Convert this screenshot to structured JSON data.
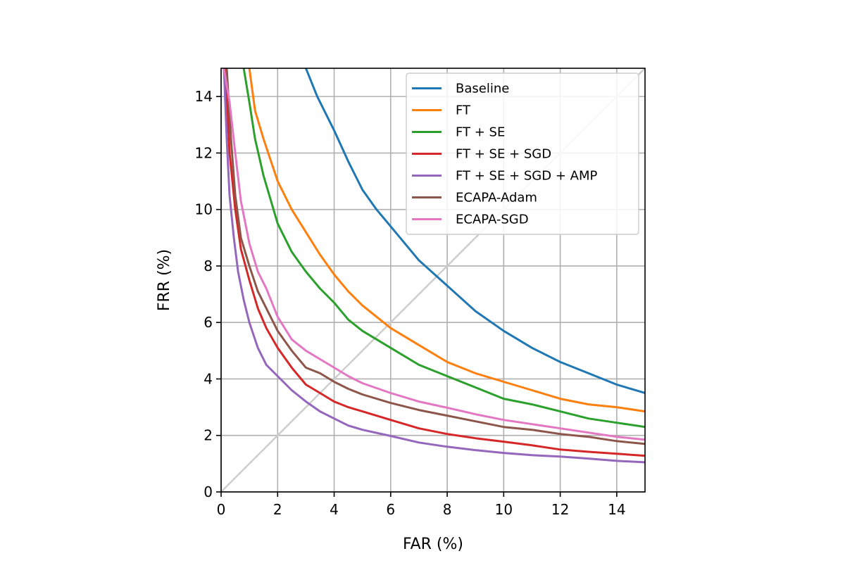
{
  "chart_data": {
    "type": "line",
    "title": "",
    "xlabel": "FAR (%)",
    "ylabel": "FRR (%)",
    "xlim": [
      0,
      15
    ],
    "ylim": [
      0,
      15
    ],
    "xticks": [
      0,
      2,
      4,
      6,
      8,
      10,
      12,
      14
    ],
    "yticks": [
      0,
      2,
      4,
      6,
      8,
      10,
      12,
      14
    ],
    "grid": true,
    "legend_position": "top-right",
    "diagonal": {
      "x": [
        0,
        15
      ],
      "y": [
        0,
        15
      ],
      "color": "#cccccc"
    },
    "series": [
      {
        "name": "Baseline",
        "color": "#1f77b4",
        "x": [
          3.0,
          3.4,
          4.0,
          4.5,
          5.0,
          5.5,
          6.0,
          7.0,
          8.0,
          9.0,
          10.0,
          11.0,
          12.0,
          13.0,
          14.0,
          15.0
        ],
        "y": [
          15.0,
          14.0,
          12.8,
          11.7,
          10.7,
          10.0,
          9.4,
          8.2,
          7.3,
          6.4,
          5.7,
          5.1,
          4.6,
          4.2,
          3.8,
          3.5
        ]
      },
      {
        "name": "FT",
        "color": "#ff7f0e",
        "x": [
          1.0,
          1.2,
          1.5,
          2.0,
          2.5,
          3.0,
          3.5,
          4.0,
          4.5,
          5.0,
          6.0,
          7.0,
          8.0,
          9.0,
          10.0,
          11.0,
          12.0,
          13.0,
          14.0,
          15.0
        ],
        "y": [
          15.0,
          13.5,
          12.5,
          11.0,
          10.0,
          9.2,
          8.4,
          7.7,
          7.1,
          6.6,
          5.8,
          5.2,
          4.6,
          4.2,
          3.9,
          3.6,
          3.3,
          3.1,
          3.0,
          2.85
        ]
      },
      {
        "name": "FT + SE",
        "color": "#2ca02c",
        "x": [
          0.8,
          1.0,
          1.2,
          1.5,
          2.0,
          2.5,
          3.0,
          3.5,
          4.0,
          4.5,
          5.0,
          6.0,
          7.0,
          8.0,
          9.0,
          10.0,
          11.0,
          12.0,
          13.0,
          14.0,
          15.0
        ],
        "y": [
          15.0,
          13.8,
          12.5,
          11.2,
          9.5,
          8.5,
          7.8,
          7.2,
          6.7,
          6.1,
          5.7,
          5.1,
          4.5,
          4.1,
          3.7,
          3.3,
          3.1,
          2.85,
          2.6,
          2.45,
          2.3
        ]
      },
      {
        "name": "FT + SE + SGD",
        "color": "#d62728",
        "x": [
          0.15,
          0.3,
          0.5,
          0.7,
          1.0,
          1.3,
          1.6,
          2.0,
          2.5,
          3.0,
          3.5,
          4.0,
          4.5,
          5.0,
          6.0,
          7.0,
          8.0,
          9.0,
          10.0,
          11.0,
          12.0,
          13.0,
          14.0,
          15.0
        ],
        "y": [
          15.0,
          12.0,
          10.0,
          8.6,
          7.5,
          6.5,
          5.8,
          5.1,
          4.4,
          3.8,
          3.5,
          3.2,
          3.0,
          2.85,
          2.55,
          2.25,
          2.05,
          1.9,
          1.78,
          1.65,
          1.5,
          1.42,
          1.35,
          1.28
        ]
      },
      {
        "name": "FT + SE + SGD + AMP",
        "color": "#9467bd",
        "x": [
          0.1,
          0.2,
          0.3,
          0.45,
          0.6,
          0.8,
          1.0,
          1.3,
          1.6,
          2.0,
          2.5,
          3.0,
          3.5,
          4.0,
          4.5,
          5.0,
          6.0,
          7.0,
          8.0,
          9.0,
          10.0,
          11.0,
          12.0,
          13.0,
          14.0,
          15.0
        ],
        "y": [
          15.0,
          12.5,
          10.5,
          9.0,
          7.8,
          6.8,
          6.0,
          5.1,
          4.5,
          4.1,
          3.6,
          3.2,
          2.85,
          2.6,
          2.35,
          2.2,
          1.98,
          1.75,
          1.6,
          1.48,
          1.38,
          1.3,
          1.25,
          1.18,
          1.1,
          1.05
        ]
      },
      {
        "name": "ECAPA-Adam",
        "color": "#8c564b",
        "x": [
          0.2,
          0.35,
          0.5,
          0.7,
          1.0,
          1.3,
          1.6,
          2.0,
          2.5,
          3.0,
          3.5,
          4.0,
          4.5,
          5.0,
          6.0,
          7.0,
          8.0,
          9.0,
          10.0,
          11.0,
          12.0,
          13.0,
          14.0,
          15.0
        ],
        "y": [
          15.0,
          12.5,
          10.5,
          9.0,
          8.0,
          7.1,
          6.5,
          5.7,
          5.0,
          4.4,
          4.2,
          3.9,
          3.65,
          3.45,
          3.15,
          2.9,
          2.7,
          2.5,
          2.3,
          2.2,
          2.05,
          1.95,
          1.8,
          1.7
        ]
      },
      {
        "name": "ECAPA-SGD",
        "color": "#e377c2",
        "x": [
          0.1,
          0.3,
          0.5,
          0.7,
          1.0,
          1.3,
          1.6,
          2.0,
          2.5,
          3.0,
          3.5,
          4.0,
          4.5,
          5.0,
          6.0,
          7.0,
          8.0,
          9.0,
          10.0,
          11.0,
          12.0,
          13.0,
          14.0,
          15.0
        ],
        "y": [
          15.0,
          13.8,
          12.0,
          10.3,
          8.8,
          7.8,
          7.2,
          6.2,
          5.4,
          5.0,
          4.7,
          4.4,
          4.1,
          3.85,
          3.5,
          3.2,
          2.98,
          2.75,
          2.55,
          2.4,
          2.25,
          2.1,
          1.95,
          1.85
        ]
      }
    ]
  }
}
